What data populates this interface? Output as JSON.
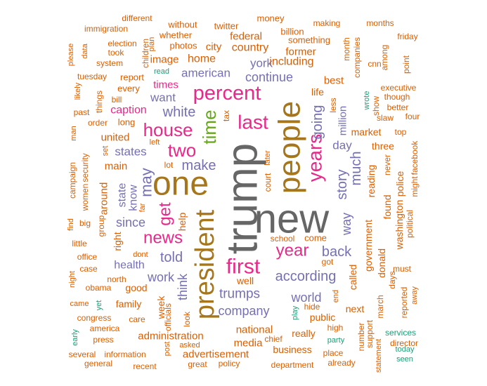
{
  "palette": {
    "orange": "#d95f02",
    "purple": "#7570b3",
    "pink": "#e7298a",
    "brown": "#a6761d",
    "teal": "#1b9e77",
    "green": "#66a61e",
    "gray": "#666666"
  },
  "words": [
    {
      "text": "trump",
      "color": "gray",
      "size": 10,
      "vertical": true
    },
    {
      "text": "new",
      "color": "gray",
      "size": 10,
      "vertical": false
    },
    {
      "text": "people",
      "color": "brown",
      "size": 8,
      "vertical": true
    },
    {
      "text": "one",
      "color": "brown",
      "size": 8,
      "vertical": false
    },
    {
      "text": "president",
      "color": "brown",
      "size": 7,
      "vertical": true
    },
    {
      "text": "first",
      "color": "pink",
      "size": 6,
      "vertical": false
    },
    {
      "text": "percent",
      "color": "pink",
      "size": 6,
      "vertical": false
    },
    {
      "text": "last",
      "color": "pink",
      "size": 5,
      "vertical": false
    },
    {
      "text": "time",
      "color": "green",
      "size": 5,
      "vertical": true
    },
    {
      "text": "years",
      "color": "pink",
      "size": 5,
      "vertical": true
    },
    {
      "text": "year",
      "color": "pink",
      "size": 5,
      "vertical": false
    },
    {
      "text": "house",
      "color": "pink",
      "size": 5,
      "vertical": false
    },
    {
      "text": "two",
      "color": "pink",
      "size": 5,
      "vertical": false
    },
    {
      "text": "news",
      "color": "pink",
      "size": 5,
      "vertical": false
    },
    {
      "text": "get",
      "color": "pink",
      "size": 5,
      "vertical": true
    },
    {
      "text": "may",
      "color": "purple",
      "size": 4,
      "vertical": true
    },
    {
      "text": "going",
      "color": "purple",
      "size": 4,
      "vertical": true
    },
    {
      "text": "white",
      "color": "purple",
      "size": 4,
      "vertical": false
    },
    {
      "text": "make",
      "color": "purple",
      "size": 4,
      "vertical": false
    },
    {
      "text": "story",
      "color": "purple",
      "size": 4,
      "vertical": true
    },
    {
      "text": "much",
      "color": "purple",
      "size": 4,
      "vertical": true
    },
    {
      "text": "according",
      "color": "purple",
      "size": 4,
      "vertical": false
    },
    {
      "text": "back",
      "color": "purple",
      "size": 4,
      "vertical": false
    },
    {
      "text": "told",
      "color": "purple",
      "size": 4,
      "vertical": false
    },
    {
      "text": "think",
      "color": "purple",
      "size": 4,
      "vertical": true
    },
    {
      "text": "work",
      "color": "purple",
      "size": 4,
      "vertical": false
    },
    {
      "text": "trumps",
      "color": "purple",
      "size": 4,
      "vertical": false
    },
    {
      "text": "world",
      "color": "purple",
      "size": 4,
      "vertical": false
    },
    {
      "text": "company",
      "color": "purple",
      "size": 4,
      "vertical": false
    },
    {
      "text": "since",
      "color": "purple",
      "size": 4,
      "vertical": false
    },
    {
      "text": "way",
      "color": "purple",
      "size": 4,
      "vertical": true
    },
    {
      "text": "continue",
      "color": "purple",
      "size": 4,
      "vertical": false
    },
    {
      "text": "american",
      "color": "purple",
      "size": 3,
      "vertical": false
    },
    {
      "text": "york",
      "color": "purple",
      "size": 3,
      "vertical": false
    },
    {
      "text": "want",
      "color": "purple",
      "size": 3,
      "vertical": false
    },
    {
      "text": "know",
      "color": "purple",
      "size": 3,
      "vertical": true
    },
    {
      "text": "states",
      "color": "purple",
      "size": 3,
      "vertical": false
    },
    {
      "text": "state",
      "color": "purple",
      "size": 3,
      "vertical": true
    },
    {
      "text": "health",
      "color": "purple",
      "size": 3,
      "vertical": false
    },
    {
      "text": "day",
      "color": "purple",
      "size": 3,
      "vertical": false
    },
    {
      "text": "million",
      "color": "purple",
      "size": 3,
      "vertical": true
    },
    {
      "text": "company",
      "color": "purple",
      "size": 3,
      "vertical": false,
      "hidden_dup": true
    },
    {
      "text": "caption",
      "color": "pink",
      "size": 3,
      "vertical": false
    },
    {
      "text": "times",
      "color": "pink",
      "size": 3,
      "vertical": false
    },
    {
      "text": "main",
      "color": "orange",
      "size": 3,
      "vertical": false
    },
    {
      "text": "united",
      "color": "orange",
      "size": 3,
      "vertical": false
    },
    {
      "text": "around",
      "color": "orange",
      "size": 3,
      "vertical": true
    },
    {
      "text": "including",
      "color": "orange",
      "size": 3,
      "vertical": false
    },
    {
      "text": "country",
      "color": "orange",
      "size": 3,
      "vertical": false
    },
    {
      "text": "home",
      "color": "orange",
      "size": 3,
      "vertical": false
    },
    {
      "text": "image",
      "color": "orange",
      "size": 3,
      "vertical": false
    },
    {
      "text": "city",
      "color": "orange",
      "size": 3,
      "vertical": false
    },
    {
      "text": "former",
      "color": "orange",
      "size": 3,
      "vertical": false
    },
    {
      "text": "federal",
      "color": "orange",
      "size": 3,
      "vertical": false
    },
    {
      "text": "best",
      "color": "orange",
      "size": 3,
      "vertical": false
    },
    {
      "text": "life",
      "color": "orange",
      "size": 3,
      "vertical": false
    },
    {
      "text": "market",
      "color": "orange",
      "size": 3,
      "vertical": false
    },
    {
      "text": "three",
      "color": "orange",
      "size": 3,
      "vertical": false
    },
    {
      "text": "reading",
      "color": "orange",
      "size": 3,
      "vertical": true
    },
    {
      "text": "government",
      "color": "orange",
      "size": 3,
      "vertical": true
    },
    {
      "text": "called",
      "color": "orange",
      "size": 3,
      "vertical": true
    },
    {
      "text": "found",
      "color": "orange",
      "size": 3,
      "vertical": true
    },
    {
      "text": "donald",
      "color": "orange",
      "size": 3,
      "vertical": true
    },
    {
      "text": "washington",
      "color": "orange",
      "size": 3,
      "vertical": true
    },
    {
      "text": "police",
      "color": "orange",
      "size": 3,
      "vertical": true
    },
    {
      "text": "national",
      "color": "orange",
      "size": 3,
      "vertical": false
    },
    {
      "text": "media",
      "color": "orange",
      "size": 3,
      "vertical": false
    },
    {
      "text": "administration",
      "color": "orange",
      "size": 3,
      "vertical": false
    },
    {
      "text": "advertisement",
      "color": "orange",
      "size": 3,
      "vertical": false
    },
    {
      "text": "business",
      "color": "orange",
      "size": 3,
      "vertical": false
    },
    {
      "text": "really",
      "color": "orange",
      "size": 3,
      "vertical": false
    },
    {
      "text": "public",
      "color": "orange",
      "size": 3,
      "vertical": false
    },
    {
      "text": "well",
      "color": "orange",
      "size": 3,
      "vertical": false
    },
    {
      "text": "good",
      "color": "orange",
      "size": 3,
      "vertical": false
    },
    {
      "text": "family",
      "color": "orange",
      "size": 3,
      "vertical": false
    },
    {
      "text": "week",
      "color": "orange",
      "size": 3,
      "vertical": true
    },
    {
      "text": "help",
      "color": "orange",
      "size": 3,
      "vertical": true
    },
    {
      "text": "right",
      "color": "orange",
      "size": 3,
      "vertical": true
    },
    {
      "text": "next",
      "color": "orange",
      "size": 3,
      "vertical": false
    }
  ],
  "small_words": [
    "different",
    "immigration",
    "without",
    "whether",
    "twitter",
    "money",
    "making",
    "months",
    "billion",
    "something",
    "friday",
    "please",
    "data",
    "took",
    "election",
    "children",
    "plan",
    "photos",
    "month",
    "companies",
    "system",
    "read",
    "cnn",
    "among",
    "point",
    "tuesday",
    "report",
    "likely",
    "every",
    "executive",
    "bill",
    "though",
    "better",
    "past",
    "things",
    "less",
    "wrote",
    "show",
    "slaw",
    "four",
    "man",
    "order",
    "long",
    "tax",
    "top",
    "left",
    "lot",
    "set",
    "court",
    "later",
    "never",
    "facebook",
    "might",
    "campaign",
    "security",
    "women",
    "far",
    "political",
    "find",
    "big",
    "group",
    "dont",
    "come",
    "school",
    "little",
    "office",
    "case",
    "north",
    "got",
    "must",
    "days",
    "night",
    "obama",
    "came",
    "yet",
    "officials",
    "look",
    "hide",
    "end",
    "march",
    "reported",
    "away",
    "congress",
    "care",
    "america",
    "press",
    "early",
    "play",
    "high",
    "number",
    "support",
    "services",
    "director",
    "chief",
    "party",
    "several",
    "information",
    "post",
    "asked",
    "general",
    "recent",
    "great",
    "policy",
    "department",
    "already",
    "place",
    "statement",
    "today",
    "seen"
  ]
}
